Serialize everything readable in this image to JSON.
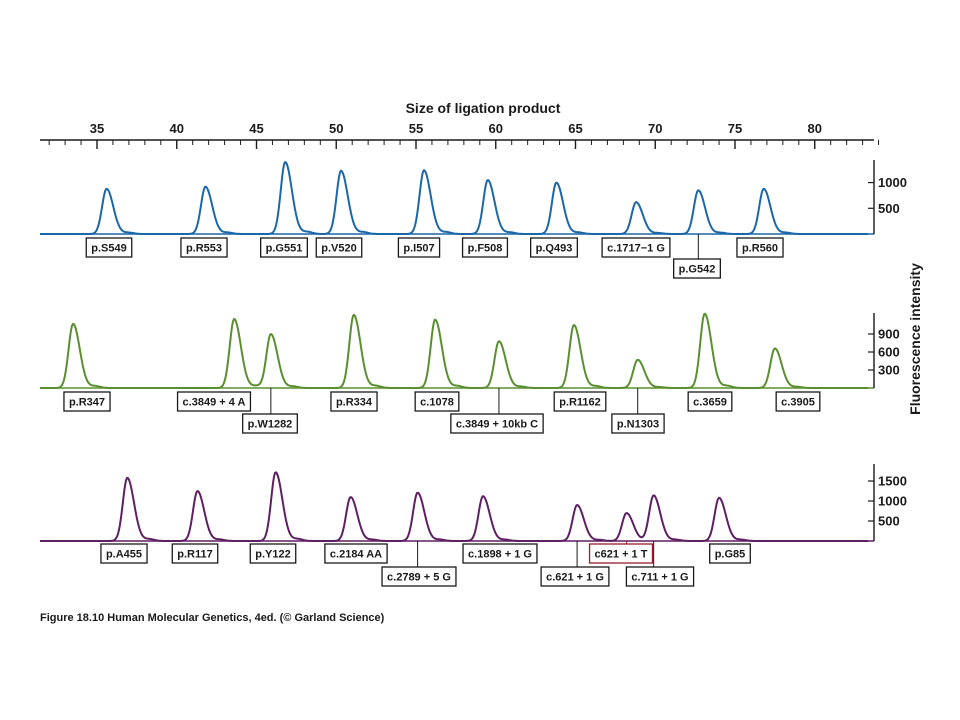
{
  "caption": "Figure 18.10  Human Molecular Genetics, 4ed. (© Garland Science)",
  "chart_data": {
    "type": "line",
    "xlabel": "Size of ligation product",
    "ylabel": "Fluorescence intensity",
    "xlim": [
      31.5,
      84
    ],
    "xticks": [
      35,
      40,
      45,
      50,
      55,
      60,
      65,
      70,
      75,
      80
    ],
    "panels": [
      {
        "color": "#1b67a8",
        "ylim": [
          0,
          1400
        ],
        "yticks": [
          500,
          1000
        ],
        "peaks": [
          {
            "label": "p.S549",
            "x": 35.6,
            "height": 880
          },
          {
            "label": "p.R553",
            "x": 41.8,
            "height": 920
          },
          {
            "label": "p.G551",
            "x": 46.8,
            "height": 1400
          },
          {
            "label": "p.V520",
            "x": 50.3,
            "height": 1230
          },
          {
            "label": "p.I507",
            "x": 55.5,
            "height": 1240
          },
          {
            "label": "p.F508",
            "x": 59.5,
            "height": 1050
          },
          {
            "label": "p.Q493",
            "x": 63.8,
            "height": 1000
          },
          {
            "label": "c.1717−1 G",
            "x": 68.8,
            "height": 620
          },
          {
            "label": "p.G542",
            "x": 72.7,
            "height": 850
          },
          {
            "label": "p.R560",
            "x": 76.8,
            "height": 880
          }
        ]
      },
      {
        "color": "#5a8f2f",
        "ylim": [
          0,
          1200
        ],
        "yticks": [
          300,
          600,
          900
        ],
        "peaks": [
          {
            "label": "p.R347",
            "x": 33.5,
            "height": 1070
          },
          {
            "label": "c.3849 + 4 A",
            "x": 43.6,
            "height": 1150
          },
          {
            "label": "p.W1282",
            "x": 45.9,
            "height": 900
          },
          {
            "label": "p.R334",
            "x": 51.1,
            "height": 1220
          },
          {
            "label": "c.1078",
            "x": 56.2,
            "height": 1140
          },
          {
            "label": "c.3849 + 10kb C",
            "x": 60.2,
            "height": 780
          },
          {
            "label": "p.R1162",
            "x": 64.9,
            "height": 1050
          },
          {
            "label": "p.N1303",
            "x": 68.9,
            "height": 470
          },
          {
            "label": "c.3659",
            "x": 73.1,
            "height": 1240
          },
          {
            "label": "c.3905",
            "x": 77.5,
            "height": 660
          }
        ]
      },
      {
        "color": "#5e1f63",
        "ylim": [
          0,
          1800
        ],
        "yticks": [
          500,
          1000,
          1500
        ],
        "peaks": [
          {
            "label": "p.A455",
            "x": 36.9,
            "height": 1580
          },
          {
            "label": "p.R117",
            "x": 41.3,
            "height": 1250
          },
          {
            "label": "p.Y122",
            "x": 46.2,
            "height": 1720
          },
          {
            "label": "c.2184 AA",
            "x": 50.9,
            "height": 1100
          },
          {
            "label": "c.2789 + 5 G",
            "x": 55.1,
            "height": 1210
          },
          {
            "label": "c.1898 + 1 G",
            "x": 59.2,
            "height": 1120
          },
          {
            "label": "c.621 + 1 G",
            "x": 65.1,
            "height": 900
          },
          {
            "label": "c621 + 1 T",
            "x": 68.2,
            "height": 700,
            "highlight": true,
            "color": "#9b1b30"
          },
          {
            "label": "c.711 + 1 G",
            "x": 69.9,
            "height": 1130
          },
          {
            "label": "p.G85",
            "x": 74.0,
            "height": 1080
          }
        ]
      }
    ]
  }
}
